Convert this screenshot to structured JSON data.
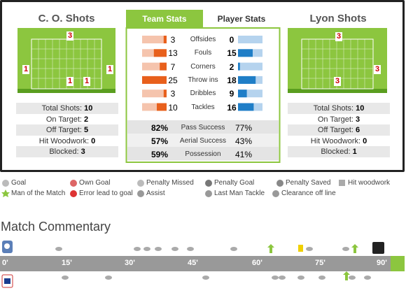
{
  "home": {
    "title": "C. O. Shots",
    "pitch_numbers": [
      "3",
      "1",
      "1",
      "1",
      "1"
    ],
    "stats": [
      {
        "label": "Total Shots:",
        "value": "10"
      },
      {
        "label": "On Target:",
        "value": "2"
      },
      {
        "label": "Off Target:",
        "value": "5"
      },
      {
        "label": "Hit Woodwork:",
        "value": "0"
      },
      {
        "label": "Blocked:",
        "value": "3"
      }
    ]
  },
  "away": {
    "title": "Lyon Shots",
    "pitch_numbers": [
      "3",
      "3",
      "3"
    ],
    "stats": [
      {
        "label": "Total Shots:",
        "value": "10"
      },
      {
        "label": "On Target:",
        "value": "3"
      },
      {
        "label": "Off Target:",
        "value": "6"
      },
      {
        "label": "Hit Woodwork:",
        "value": "0"
      },
      {
        "label": "Blocked:",
        "value": "1"
      }
    ]
  },
  "tabs": [
    "Team Stats",
    "Player Stats"
  ],
  "team_stats": [
    {
      "home": 3,
      "label": "Offsides",
      "away": 0
    },
    {
      "home": 13,
      "label": "Fouls",
      "away": 15
    },
    {
      "home": 7,
      "label": "Corners",
      "away": 2
    },
    {
      "home": 25,
      "label": "Throw ins",
      "away": 18
    },
    {
      "home": 3,
      "label": "Dribbles",
      "away": 9
    },
    {
      "home": 10,
      "label": "Tackles",
      "away": 16
    }
  ],
  "pct_stats": [
    {
      "home": "82%",
      "label": "Pass Success",
      "away": "77%"
    },
    {
      "home": "57%",
      "label": "Aerial Success",
      "away": "43%"
    },
    {
      "home": "59%",
      "label": "Possession",
      "away": "41%"
    }
  ],
  "legend": [
    [
      "Goal",
      "Own Goal",
      "Penalty Missed",
      "Penalty Goal",
      "Penalty Saved",
      "Hit woodwork"
    ],
    [
      "Man of the Match",
      "Error lead to goal",
      "Assist",
      "Last Man Tackle",
      "Clearance off line"
    ]
  ],
  "commentary": {
    "title": "Match Commentary",
    "times": [
      "0'",
      "15'",
      "30'",
      "45'",
      "60'",
      "75'",
      "90'"
    ]
  }
}
